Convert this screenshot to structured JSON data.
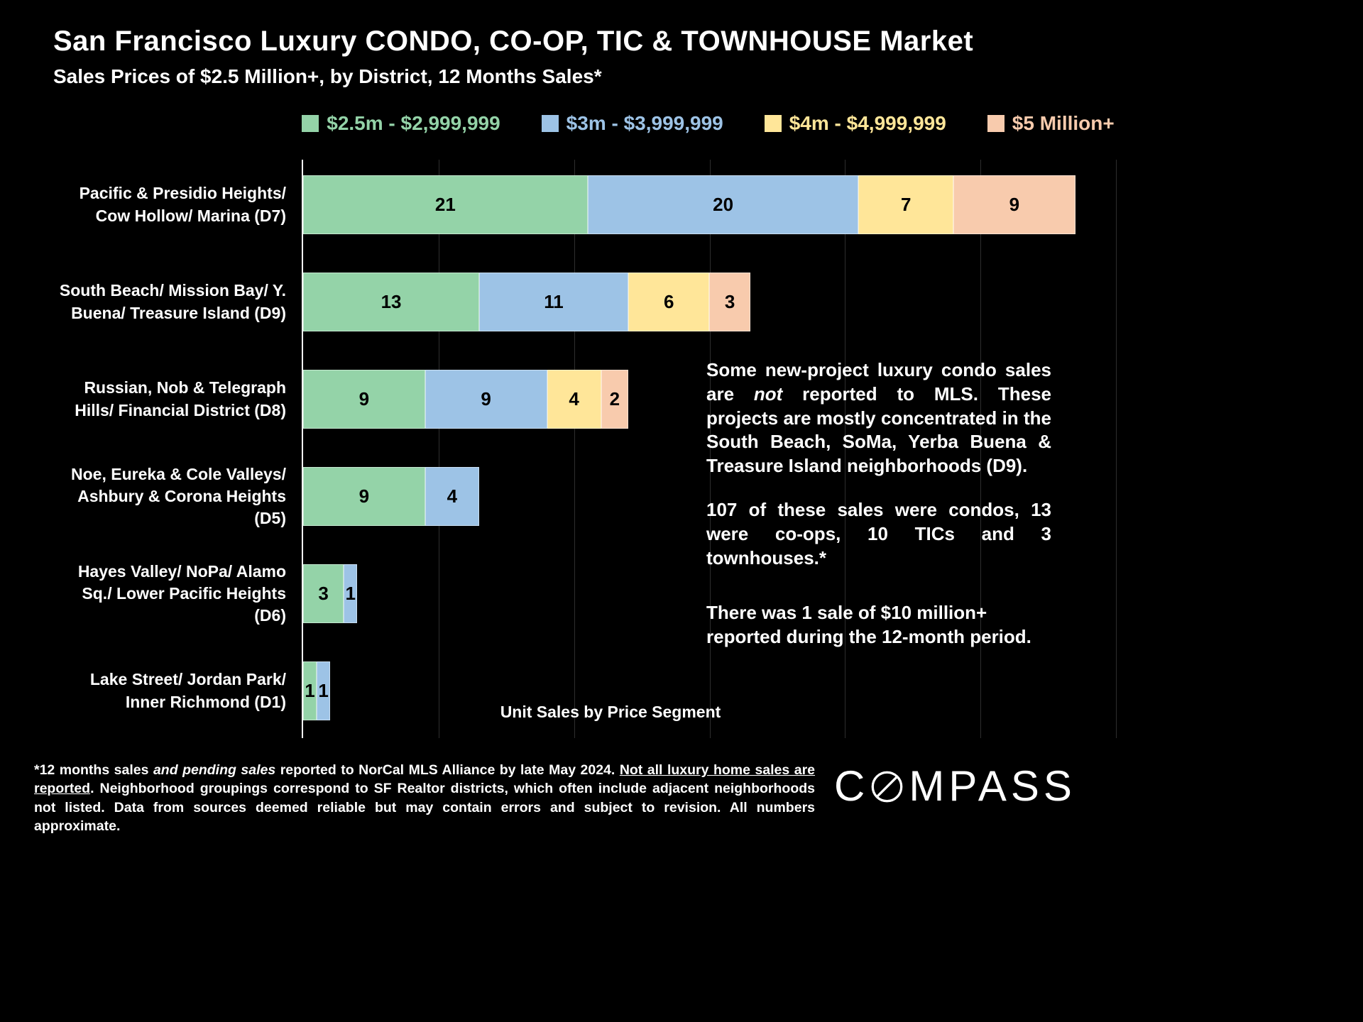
{
  "page": {
    "title": "San Francisco Luxury CONDO, CO-OP, TIC & TOWNHOUSE Market",
    "subtitle": "Sales Prices of $2.5 Million+, by District, 12 Months Sales*",
    "background": "#000000"
  },
  "chart_data": {
    "type": "bar",
    "orientation": "horizontal",
    "stacked": true,
    "xlabel": "Unit Sales by Price Segment",
    "xlim": [
      0,
      60
    ],
    "gridlines": [
      10,
      20,
      30,
      40,
      50,
      60
    ],
    "grid_color": "#2e2e2e",
    "legend_position": "top",
    "categories": [
      "Pacific & Presidio Heights/\nCow Hollow/ Marina (D7)",
      "South Beach/ Mission Bay/ Y.\nBuena/ Treasure Island (D9)",
      "Russian, Nob & Telegraph\nHills/ Financial District (D8)",
      "Noe, Eureka & Cole Valleys/\nAshbury & Corona Heights\n(D5)",
      "Hayes Valley/ NoPa/ Alamo\nSq./ Lower Pacific Heights\n(D6)",
      "Lake Street/ Jordan Park/\nInner Richmond (D1)"
    ],
    "series": [
      {
        "name": "$2.5m - $2,999,999",
        "color": "#94d3a8",
        "values": [
          21,
          13,
          9,
          9,
          3,
          1
        ]
      },
      {
        "name": "$3m - $3,999,999",
        "color": "#9dc3e6",
        "values": [
          20,
          11,
          9,
          4,
          1,
          1
        ]
      },
      {
        "name": "$4m - $4,999,999",
        "color": "#ffe699",
        "values": [
          7,
          6,
          4,
          0,
          0,
          0
        ]
      },
      {
        "name": "$5 Million+",
        "color": "#f8cbad",
        "values": [
          9,
          3,
          2,
          0,
          0,
          0
        ]
      }
    ]
  },
  "annotations": {
    "p1_pre": "Some new-project luxury condo sales are ",
    "p1_italic": "not",
    "p1_post": " reported to MLS. These projects are mostly concentrated in the South Beach, SoMa, Yerba Buena & Treasure Island neighborhoods (D9).",
    "p2": "107 of these sales were condos, 13 were co-ops, 10 TICs and 3 townhouses.*",
    "p3": "There was 1 sale of $10 million+ reported during the 12-month period."
  },
  "footnote": {
    "part1": "*12 months sales ",
    "italic1": "and pending sales",
    "part2": " reported to NorCal MLS Alliance by late May 2024. ",
    "underline1": "Not all luxury home sales are reported",
    "part3": ". Neighborhood groupings correspond to SF Realtor districts, which often include adjacent neighborhoods not listed. Data from sources deemed reliable but may contain errors and subject to revision. All numbers approximate."
  },
  "logo": {
    "name": "COMPASS",
    "letters_before": "C",
    "letters_after": "MPASS"
  }
}
